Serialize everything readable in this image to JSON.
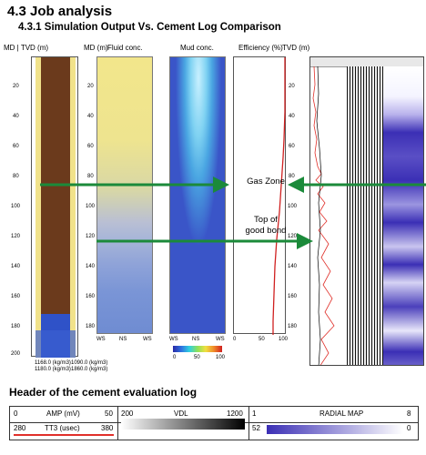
{
  "section_title": "4.3 Job analysis",
  "subsection_title": "4.3.1   Simulation Output Vs. Cement Log Comparison",
  "figure": {
    "md_tvd_label": "MD | TVD (m)",
    "md_label": "MD (m)",
    "tvd_label": "TVD (m)",
    "depth_ticks": [
      "20",
      "40",
      "60",
      "80",
      "100",
      "120",
      "140",
      "160",
      "180",
      "200"
    ],
    "legend_rows": [
      "1168.0 (kg/m3)",
      "1180.0 (kg/m3)",
      "1090.0 (kg/m3)",
      "1860.0 (kg/m3)"
    ],
    "fluid_conc_title": "Fluid conc.",
    "mud_conc_title": "Mud conc.",
    "efficiency_title": "Efficiency (%)",
    "ws_ns_labels": [
      "WS",
      "NS",
      "WS"
    ],
    "colorbar_ticks": [
      "0",
      "50",
      "100"
    ],
    "efficiency_ticks": [
      "0",
      "50",
      "100"
    ],
    "gas_zone_label": "Gas Zone",
    "top_of_good_bond_label": "Top of\ngood bond",
    "colors": {
      "annotation_arrow": "#1b8a3a",
      "casing_brown": "#6b3a1c",
      "cement_yellow": "#f1e28a",
      "radial_map_blue": "#3b2fb5",
      "amp_curve_red": "#e0302a"
    }
  },
  "log_header": {
    "title": "Header of the cement evaluation log",
    "row1": {
      "amp_min": "0",
      "amp_label": "AMP (mV)",
      "amp_max": "50",
      "vdl_min": "200",
      "vdl_label": "VDL",
      "vdl_max": "1200",
      "radial_min": "1",
      "radial_label": "RADIAL MAP",
      "radial_max": "8"
    },
    "row2": {
      "tt3_min": "280",
      "tt3_label": "TT3 (usec)",
      "tt3_max": "380",
      "radial_min2": "52",
      "radial_max2": "0"
    }
  }
}
